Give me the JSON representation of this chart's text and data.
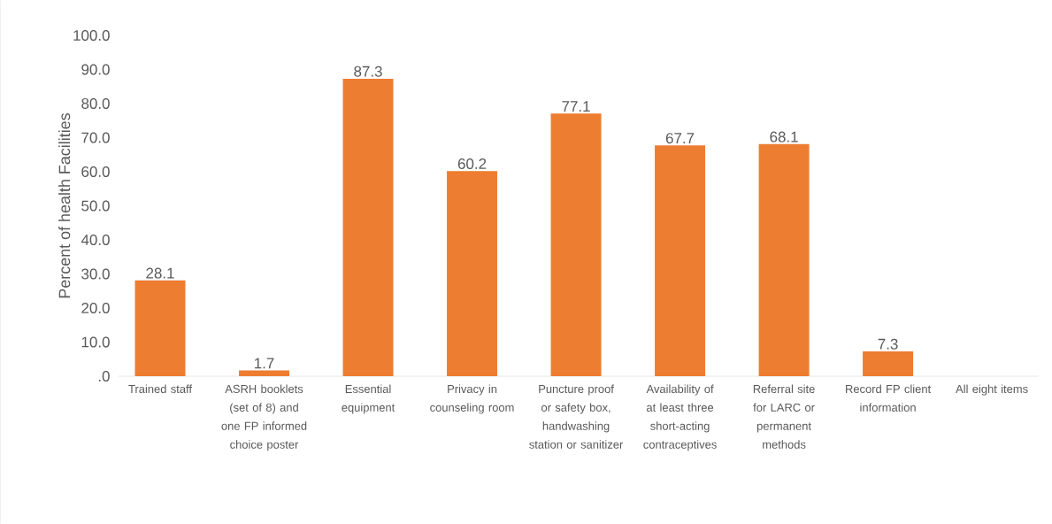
{
  "chart_data": {
    "type": "bar",
    "ylabel": "Percent of health Facilities",
    "categories": [
      "Trained staff",
      "ASRH booklets (set of 8) and one FP informed choice poster",
      "Essential equipment",
      "Privacy in counseling room",
      "Puncture proof or safety box, handwashing station or sanitizer",
      "Availability of at least three short-acting contraceptives",
      "Referral site for LARC or permanent methods",
      "Record FP client information",
      "All eight items"
    ],
    "values": [
      28.1,
      1.7,
      87.3,
      60.2,
      77.1,
      67.7,
      68.1,
      7.3,
      0
    ],
    "value_labels": [
      "28.1",
      "1.7",
      "87.3",
      "60.2",
      "77.1",
      "67.7",
      "68.1",
      "7.3",
      null
    ],
    "color": "#ed7d31",
    "ylim": [
      0,
      100
    ],
    "yticks": [
      {
        "value": 0,
        "label": ".0"
      },
      {
        "value": 10,
        "label": "10.0"
      },
      {
        "value": 20,
        "label": "20.0"
      },
      {
        "value": 30,
        "label": "30.0"
      },
      {
        "value": 40,
        "label": "40.0"
      },
      {
        "value": 50,
        "label": "50.0"
      },
      {
        "value": 60,
        "label": "60.0"
      },
      {
        "value": 70,
        "label": "70.0"
      },
      {
        "value": 80,
        "label": "80.0"
      },
      {
        "value": 90,
        "label": "90.0"
      },
      {
        "value": 100,
        "label": "100.0"
      }
    ],
    "grid": false
  }
}
